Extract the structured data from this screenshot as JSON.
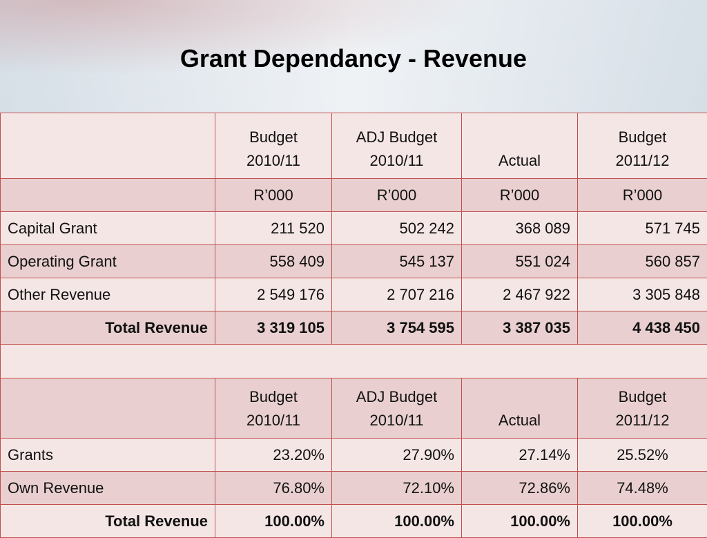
{
  "title": "Grant Dependancy - Revenue",
  "colors": {
    "border": "#c0504d",
    "row_light": "#f5e6e6",
    "row_dark": "#e9cfcf"
  },
  "table1": {
    "headers": [
      {
        "line1": "Budget",
        "line2": "2010/11"
      },
      {
        "line1": "ADJ Budget",
        "line2": "2010/11"
      },
      {
        "line1": "",
        "line2": "Actual"
      },
      {
        "line1": "Budget",
        "line2": "2011/12"
      }
    ],
    "units": [
      "R’000",
      "R’000",
      "R’000",
      "R’000"
    ],
    "rows": [
      {
        "label": "Capital Grant",
        "values": [
          "211 520",
          "502 242",
          "368 089",
          "571 745"
        ]
      },
      {
        "label": "Operating Grant",
        "values": [
          "558 409",
          "545 137",
          "551 024",
          "560 857"
        ]
      },
      {
        "label": "Other Revenue",
        "values": [
          "2 549 176",
          "2 707 216",
          "2 467 922",
          "3 305 848"
        ]
      }
    ],
    "total": {
      "label": "Total Revenue",
      "values": [
        "3 319 105",
        "3 754 595",
        "3 387 035",
        "4 438 450"
      ]
    }
  },
  "table2": {
    "headers": [
      {
        "line1": "Budget",
        "line2": "2010/11"
      },
      {
        "line1": "ADJ Budget",
        "line2": "2010/11"
      },
      {
        "line1": "",
        "line2": "Actual"
      },
      {
        "line1": "Budget",
        "line2": "2011/12"
      }
    ],
    "rows": [
      {
        "label": "Grants",
        "values": [
          "23.20%",
          "27.90%",
          "27.14%",
          "25.52%"
        ]
      },
      {
        "label": "Own Revenue",
        "values": [
          "76.80%",
          "72.10%",
          "72.86%",
          "74.48%"
        ]
      }
    ],
    "total": {
      "label": "Total Revenue",
      "values": [
        "100.00%",
        "100.00%",
        "100.00%",
        "100.00%"
      ]
    }
  }
}
